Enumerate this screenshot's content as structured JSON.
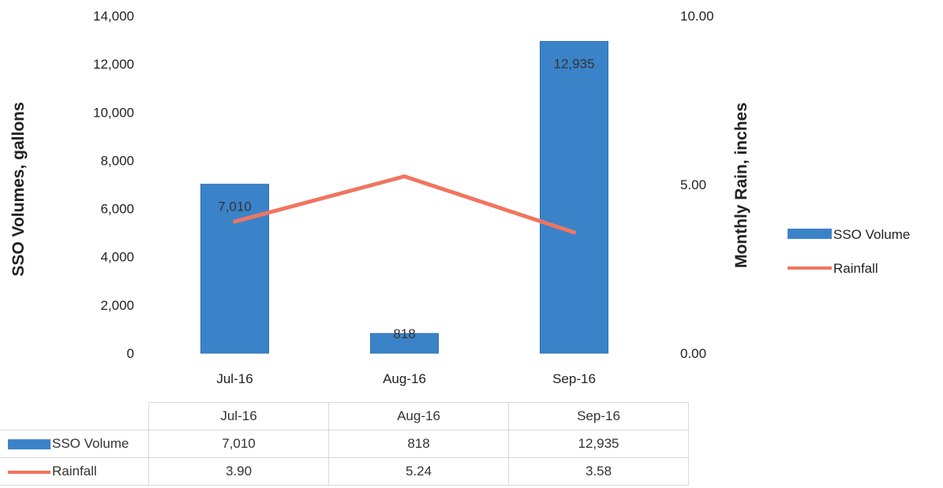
{
  "chart_data": {
    "type": "bar",
    "categories": [
      "Jul-16",
      "Aug-16",
      "Sep-16"
    ],
    "series": [
      {
        "name": "SSO Volume",
        "type": "bar",
        "axis": "left",
        "values": [
          7010,
          818,
          12935
        ],
        "labels": [
          "7,010",
          "818",
          "12,935"
        ],
        "color": "#3b83c9"
      },
      {
        "name": "Rainfall",
        "type": "line",
        "axis": "right",
        "values": [
          3.9,
          5.24,
          3.58
        ],
        "labels": [
          "3.90",
          "5.24",
          "3.58"
        ],
        "color": "#ef7660"
      }
    ],
    "ylabel": "SSO Volumes, gallons",
    "y2label": "Monthly Rain, inches",
    "ylim": [
      0,
      14000
    ],
    "y2lim": [
      0,
      10
    ],
    "yticks": [
      "0",
      "2,000",
      "4,000",
      "6,000",
      "8,000",
      "10,000",
      "12,000",
      "14,000"
    ],
    "y2ticks": [
      "0.00",
      "5.00",
      "10.00"
    ],
    "legend": "right",
    "grid": false,
    "data_table": true
  }
}
